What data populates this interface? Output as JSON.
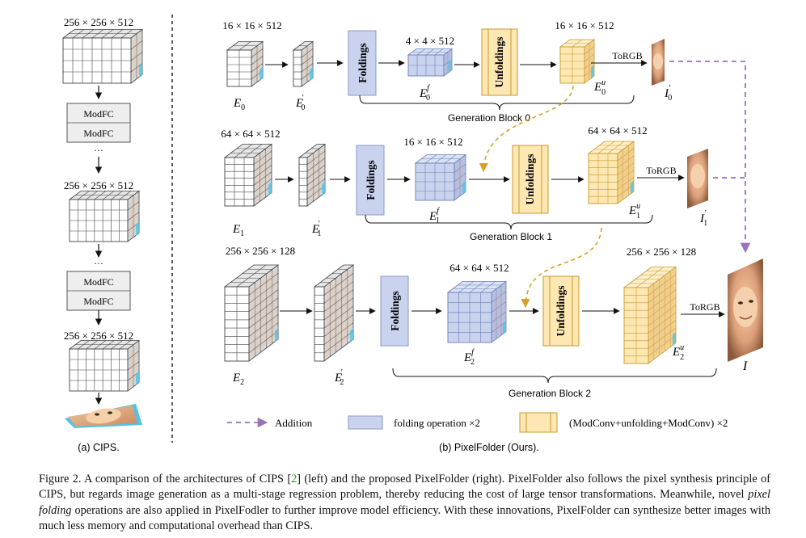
{
  "colors": {
    "grid_gray": "#ffffff",
    "gray_side": "#d9d9d9",
    "blue_face": "#c9d3ee",
    "blue_line": "#6c7fb8",
    "yellow_face": "#fde7b2",
    "yellow_line": "#c99a2e",
    "modfc_fill": "#eeeeee",
    "addition_arrow": "#9a72b6",
    "gen_arrow": "#d6a12a",
    "skin": "#e8b48c",
    "teal": "#4fc3e8",
    "citation_green": "#2ca02c"
  },
  "cips": {
    "label": "(a) CIPS.",
    "dims": [
      "256 × 256 × 512",
      "256 × 256 × 512",
      "256 × 256 × 512"
    ],
    "modfc": "ModFC",
    "dots": "···"
  },
  "pixelfolder": {
    "label": "(b) PixelFolder (Ours).",
    "foldings": "Foldings",
    "unfoldings": "Unfoldings",
    "torgb": "ToRGB",
    "final_output": "I",
    "blocks": [
      {
        "name": "Generation Block 0",
        "input_dim": "16 × 16 × 512",
        "fold_dim": "4 × 4 × 512",
        "out_dim": "16 × 16 × 512",
        "E": "E",
        "E_sub": "0",
        "E_prime": "E",
        "E_prime_sub": "0",
        "E_prime_sup": "′",
        "Ef": "E",
        "Ef_sub": "0",
        "Ef_sup": "f",
        "Eu": "E",
        "Eu_sub": "0",
        "Eu_sup": "u",
        "I": "I",
        "I_sub": "0",
        "I_sup": "′"
      },
      {
        "name": "Generation Block 1",
        "input_dim": "64 × 64 × 512",
        "fold_dim": "16 × 16 × 512",
        "out_dim": "64 × 64 × 512",
        "E": "E",
        "E_sub": "1",
        "E_prime": "E",
        "E_prime_sub": "1",
        "E_prime_sup": "′",
        "Ef": "E",
        "Ef_sub": "1",
        "Ef_sup": "f",
        "Eu": "E",
        "Eu_sub": "1",
        "Eu_sup": "u",
        "I": "I",
        "I_sub": "1",
        "I_sup": "′"
      },
      {
        "name": "Generation Block 2",
        "input_dim": "256 × 256 × 128",
        "fold_dim": "64 × 64 × 512",
        "out_dim": "256 × 256 × 128",
        "E": "E",
        "E_sub": "2",
        "E_prime": "E",
        "E_prime_sub": "2",
        "E_prime_sup": "′",
        "Ef": "E",
        "Ef_sub": "2",
        "Ef_sup": "f",
        "Eu": "E",
        "Eu_sub": "2",
        "Eu_sup": "u"
      }
    ]
  },
  "legend": {
    "addition": "Addition",
    "folding": "folding operation ×2",
    "modconv": "(ModConv+unfolding+ModConv) ×2"
  },
  "caption": {
    "prefix": "Figure 2.  A comparison of the architectures of CIPS [",
    "ref": "2",
    "middle": "] (left) and the proposed PixelFolder (right).  PixelFolder also follows the pixel synthesis principle of CIPS, but regards image generation as a multi-stage regression problem, thereby reducing the cost of large tensor transformations. Meanwhile, novel ",
    "italic": "pixel folding",
    "suffix": " operations are also applied in PixelFodler to further improve model efficiency. With these innovations, PixelFolder can synthesize better images with much less memory and computational overhead than CIPS."
  }
}
